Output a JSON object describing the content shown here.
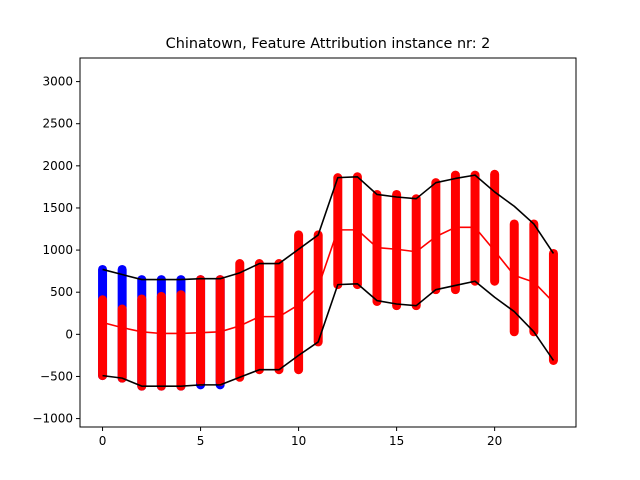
{
  "chart_data": {
    "type": "line",
    "title": "Chinatown, Feature Attribution instance nr: 2",
    "xlabel": "",
    "ylabel": "",
    "xlim": [
      -1.15,
      24.15
    ],
    "ylim": [
      -1100,
      3280
    ],
    "x_ticks": [
      0,
      5,
      10,
      15,
      20
    ],
    "y_ticks": [
      -1000,
      -500,
      0,
      500,
      1000,
      1500,
      2000,
      2500,
      3000
    ],
    "x": [
      0,
      1,
      2,
      3,
      4,
      5,
      6,
      7,
      8,
      9,
      10,
      11,
      12,
      13,
      14,
      15,
      16,
      17,
      18,
      19,
      20,
      21,
      22,
      23
    ],
    "bars": [
      {
        "low": -490,
        "high": 770,
        "color": "#0000ff"
      },
      {
        "low": -520,
        "high": 770,
        "color": "#0000ff"
      },
      {
        "low": -615,
        "high": 650,
        "color": "#0000ff"
      },
      {
        "low": -615,
        "high": 650,
        "color": "#0000ff"
      },
      {
        "low": -615,
        "high": 650,
        "color": "#0000ff"
      },
      {
        "low": -600,
        "high": 650,
        "color": "#0000ff"
      },
      {
        "low": -600,
        "high": 650,
        "color": "#0000ff"
      },
      {
        "low": -510,
        "high": 840,
        "color": "#ff0000"
      },
      {
        "low": -420,
        "high": 840,
        "color": "#ff0000"
      },
      {
        "low": -420,
        "high": 840,
        "color": "#ff0000"
      },
      {
        "low": -420,
        "high": 1180,
        "color": "#ff0000"
      },
      {
        "low": -90,
        "high": 1180,
        "color": "#ff0000"
      },
      {
        "low": 590,
        "high": 1860,
        "color": "#ff0000"
      },
      {
        "low": 590,
        "high": 1870,
        "color": "#ff0000"
      },
      {
        "low": 390,
        "high": 1660,
        "color": "#ff0000"
      },
      {
        "low": 340,
        "high": 1660,
        "color": "#ff0000"
      },
      {
        "low": 340,
        "high": 1610,
        "color": "#ff0000"
      },
      {
        "low": 530,
        "high": 1800,
        "color": "#ff0000"
      },
      {
        "low": 530,
        "high": 1890,
        "color": "#ff0000"
      },
      {
        "low": 630,
        "high": 1890,
        "color": "#ff0000"
      },
      {
        "low": 630,
        "high": 1900,
        "color": "#ff0000"
      },
      {
        "low": 30,
        "high": 1310,
        "color": "#ff0000"
      },
      {
        "low": 30,
        "high": 1310,
        "color": "#ff0000"
      },
      {
        "low": -310,
        "high": 960,
        "color": "#ff0000"
      }
    ],
    "red_overlay_bars": [
      {
        "low": -490,
        "high": 410
      },
      {
        "low": -520,
        "high": 300
      },
      {
        "low": -615,
        "high": 420
      },
      {
        "low": -615,
        "high": 450
      },
      {
        "low": -615,
        "high": 470
      },
      {
        "low": -560,
        "high": 650
      },
      {
        "low": -560,
        "high": 650
      }
    ],
    "series": [
      {
        "values": [
          140,
          80,
          30,
          10,
          10,
          20,
          30,
          100,
          210,
          210,
          350,
          560,
          1240,
          1240,
          1030,
          1010,
          980,
          1160,
          1270,
          1270,
          990,
          700,
          620,
          380
        ],
        "color": "#ff0000"
      },
      {
        "values": [
          770,
          710,
          650,
          650,
          650,
          660,
          660,
          730,
          840,
          840,
          1010,
          1180,
          1860,
          1870,
          1660,
          1630,
          1610,
          1800,
          1850,
          1890,
          1690,
          1520,
          1310,
          960
        ],
        "color": "#000000"
      },
      {
        "values": [
          -490,
          -520,
          -615,
          -615,
          -615,
          -600,
          -600,
          -510,
          -420,
          -420,
          -250,
          -90,
          590,
          600,
          400,
          360,
          340,
          530,
          580,
          630,
          440,
          270,
          30,
          -310
        ],
        "color": "#000000"
      }
    ]
  }
}
